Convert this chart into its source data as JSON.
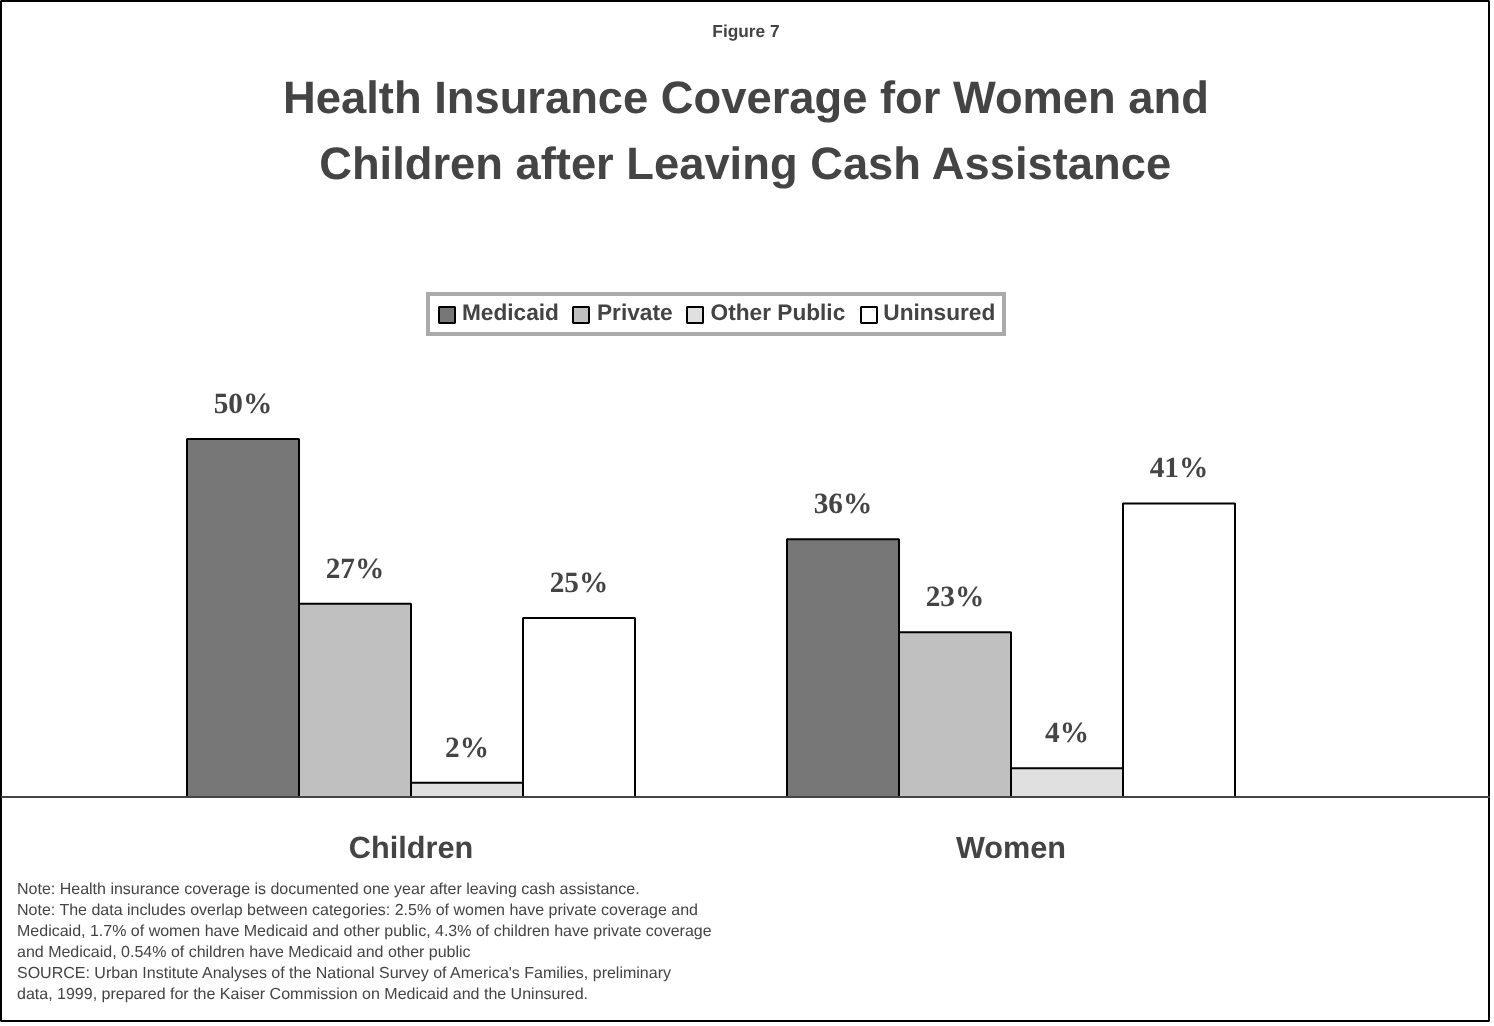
{
  "chart_data": {
    "type": "bar",
    "subtitle": "Figure 7",
    "title": "Health Insurance Coverage for Women and Children after Leaving Cash Assistance",
    "categories": [
      "Children",
      "Women"
    ],
    "series": [
      {
        "name": "Medicaid",
        "color": "#777777",
        "values": [
          50,
          36
        ],
        "value_labels": [
          "50%",
          "36%"
        ]
      },
      {
        "name": "Private",
        "color": "#c0c0c0",
        "values": [
          27,
          23
        ],
        "value_labels": [
          "27%",
          "23%"
        ]
      },
      {
        "name": "Other Public",
        "color": "#e0e0e0",
        "values": [
          2,
          4
        ],
        "value_labels": [
          "2%",
          "4%"
        ]
      },
      {
        "name": "Uninsured",
        "color": "#ffffff",
        "values": [
          25,
          41
        ],
        "value_labels": [
          "25%",
          "41%"
        ]
      }
    ],
    "tick_labels": "x",
    "legend": "top",
    "annotations": [
      "Note: Health insurance coverage is documented one year after leaving cash assistance.",
      "Note: The data includes overlap between categories: 2.5% of women have private coverage and Medicaid, 1.7% of women have Medicaid and other public, 4.3% of children have private coverage and Medicaid, 0.54% of children have Medicaid and other public",
      "SOURCE: Urban Institute Analyses of the National Survey of America's Families, preliminary data, 1999, prepared for the Kaiser Commission on Medicaid and the Uninsured."
    ]
  }
}
